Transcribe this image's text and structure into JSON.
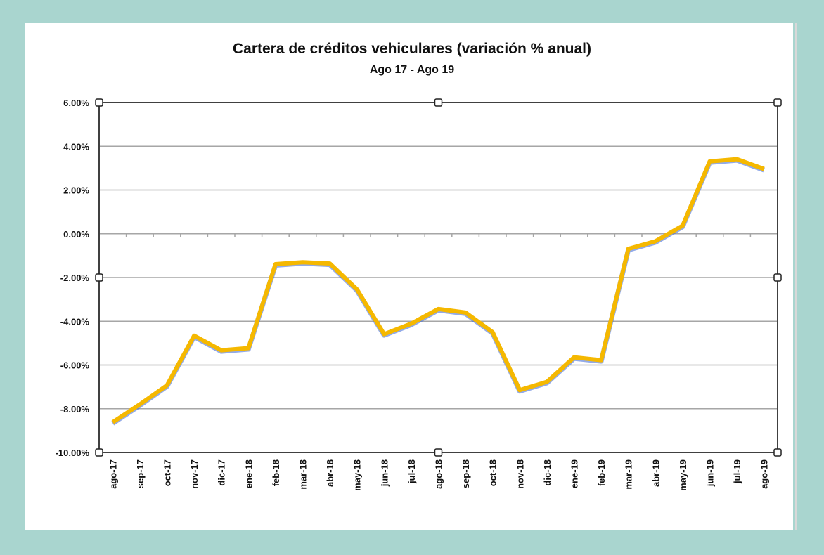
{
  "chart_data": {
    "type": "line",
    "title": "Cartera de créditos vehiculares (variación % anual)",
    "subtitle": "Ago 17 - Ago 19",
    "xlabel": "",
    "ylabel": "",
    "ylim": [
      -10,
      6
    ],
    "yticks": [
      "6.00%",
      "4.00%",
      "2.00%",
      "0.00%",
      "-2.00%",
      "-4.00%",
      "-6.00%",
      "-8.00%",
      "-10.00%"
    ],
    "ytick_values": [
      6,
      4,
      2,
      0,
      -2,
      -4,
      -6,
      -8,
      -10
    ],
    "grid": true,
    "legend": "none",
    "categories": [
      "ago-17",
      "sep-17",
      "oct-17",
      "nov-17",
      "dic-17",
      "ene-18",
      "feb-18",
      "mar-18",
      "abr-18",
      "may-18",
      "jun-18",
      "jul-18",
      "ago-18",
      "sep-18",
      "oct-18",
      "nov-18",
      "dic-18",
      "ene-19",
      "feb-19",
      "mar-19",
      "abr-19",
      "may-19",
      "jun-19",
      "jul-19",
      "ago-19"
    ],
    "series": [
      {
        "name": "Cartera de créditos vehiculares",
        "color": "#f5b800",
        "values": [
          -8.62,
          -7.8,
          -6.93,
          -4.66,
          -5.33,
          -5.23,
          -1.39,
          -1.3,
          -1.36,
          -2.54,
          -4.59,
          -4.11,
          -3.44,
          -3.6,
          -4.5,
          -7.15,
          -6.77,
          -5.65,
          -5.78,
          -0.69,
          -0.34,
          0.37,
          3.31,
          3.41,
          2.96
        ]
      }
    ]
  }
}
